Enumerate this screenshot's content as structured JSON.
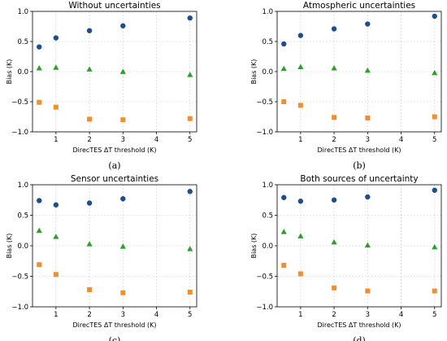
{
  "chart_data": [
    {
      "type": "scatter",
      "title": "Without uncertainties",
      "panel_label": "(a)",
      "xlabel": "DirecTES ΔT threshold (K)",
      "ylabel": "Bias (K)",
      "xlim": [
        0.3,
        5.2
      ],
      "ylim": [
        -1.0,
        1.0
      ],
      "xticks": [
        1,
        2,
        3,
        4,
        5
      ],
      "yticks": [
        -1.0,
        -0.5,
        0.0,
        0.5,
        1.0
      ],
      "ytick_labels": [
        "−1.0",
        "−0.5",
        "0.0",
        "0.5",
        "1.0"
      ],
      "grid": true,
      "x": [
        0.5,
        1,
        2,
        3,
        5
      ],
      "series": [
        {
          "color": "#1f4e8c",
          "marker": "circle",
          "values": [
            0.41,
            0.56,
            0.68,
            0.76,
            0.89
          ]
        },
        {
          "color": "#2ca02c",
          "marker": "triangle",
          "values": [
            0.06,
            0.07,
            0.04,
            0.0,
            -0.05
          ]
        },
        {
          "color": "#f28e2b",
          "marker": "square",
          "values": [
            -0.51,
            -0.59,
            -0.79,
            -0.8,
            -0.78
          ]
        }
      ]
    },
    {
      "type": "scatter",
      "title": "Atmospheric uncertainties",
      "panel_label": "(b)",
      "xlabel": "DirecTES ΔT threshold (K)",
      "ylabel": "Bias (K)",
      "xlim": [
        0.3,
        5.2
      ],
      "ylim": [
        -1.0,
        1.0
      ],
      "xticks": [
        1,
        2,
        3,
        4,
        5
      ],
      "yticks": [
        -1.0,
        -0.5,
        0.0,
        0.5,
        1.0
      ],
      "ytick_labels": [
        "−1.0",
        "−0.5",
        "0.0",
        "0.5",
        "1.0"
      ],
      "grid": true,
      "x": [
        0.5,
        1,
        2,
        3,
        5
      ],
      "series": [
        {
          "color": "#1f4e8c",
          "marker": "circle",
          "values": [
            0.46,
            0.6,
            0.71,
            0.79,
            0.92
          ]
        },
        {
          "color": "#2ca02c",
          "marker": "triangle",
          "values": [
            0.05,
            0.08,
            0.06,
            0.02,
            -0.02
          ]
        },
        {
          "color": "#f28e2b",
          "marker": "square",
          "values": [
            -0.5,
            -0.56,
            -0.76,
            -0.77,
            -0.75
          ]
        }
      ]
    },
    {
      "type": "scatter",
      "title": "Sensor uncertainties",
      "panel_label": "(c)",
      "xlabel": "DirecTES ΔT threshold (K)",
      "ylabel": "Bias (K)",
      "xlim": [
        0.3,
        5.2
      ],
      "ylim": [
        -1.0,
        1.0
      ],
      "xticks": [
        1,
        2,
        3,
        4,
        5
      ],
      "yticks": [
        -1.0,
        -0.5,
        0.0,
        0.5,
        1.0
      ],
      "ytick_labels": [
        "−1.0",
        "−0.5",
        "0.0",
        "0.5",
        "1.0"
      ],
      "grid": true,
      "x": [
        0.5,
        1,
        2,
        3,
        5
      ],
      "series": [
        {
          "color": "#1f4e8c",
          "marker": "circle",
          "values": [
            0.74,
            0.67,
            0.7,
            0.77,
            0.89
          ]
        },
        {
          "color": "#2ca02c",
          "marker": "triangle",
          "values": [
            0.25,
            0.15,
            0.03,
            -0.01,
            -0.05
          ]
        },
        {
          "color": "#f28e2b",
          "marker": "square",
          "values": [
            -0.31,
            -0.47,
            -0.72,
            -0.77,
            -0.76
          ]
        }
      ]
    },
    {
      "type": "scatter",
      "title": "Both sources of uncertainty",
      "panel_label": "(d)",
      "xlabel": "DirecTES ΔT threshold (K)",
      "ylabel": "Bias (K)",
      "xlim": [
        0.3,
        5.2
      ],
      "ylim": [
        -1.0,
        1.0
      ],
      "xticks": [
        1,
        2,
        3,
        4,
        5
      ],
      "yticks": [
        -1.0,
        -0.5,
        0.0,
        0.5,
        1.0
      ],
      "ytick_labels": [
        "−1.0",
        "−0.5",
        "0.0",
        "0.5",
        "1.0"
      ],
      "grid": true,
      "x": [
        0.5,
        1,
        2,
        3,
        5
      ],
      "series": [
        {
          "color": "#1f4e8c",
          "marker": "circle",
          "values": [
            0.79,
            0.73,
            0.75,
            0.8,
            0.91
          ]
        },
        {
          "color": "#2ca02c",
          "marker": "triangle",
          "values": [
            0.23,
            0.16,
            0.06,
            0.01,
            -0.02
          ]
        },
        {
          "color": "#f28e2b",
          "marker": "square",
          "values": [
            -0.32,
            -0.46,
            -0.69,
            -0.74,
            -0.74
          ]
        }
      ]
    }
  ]
}
